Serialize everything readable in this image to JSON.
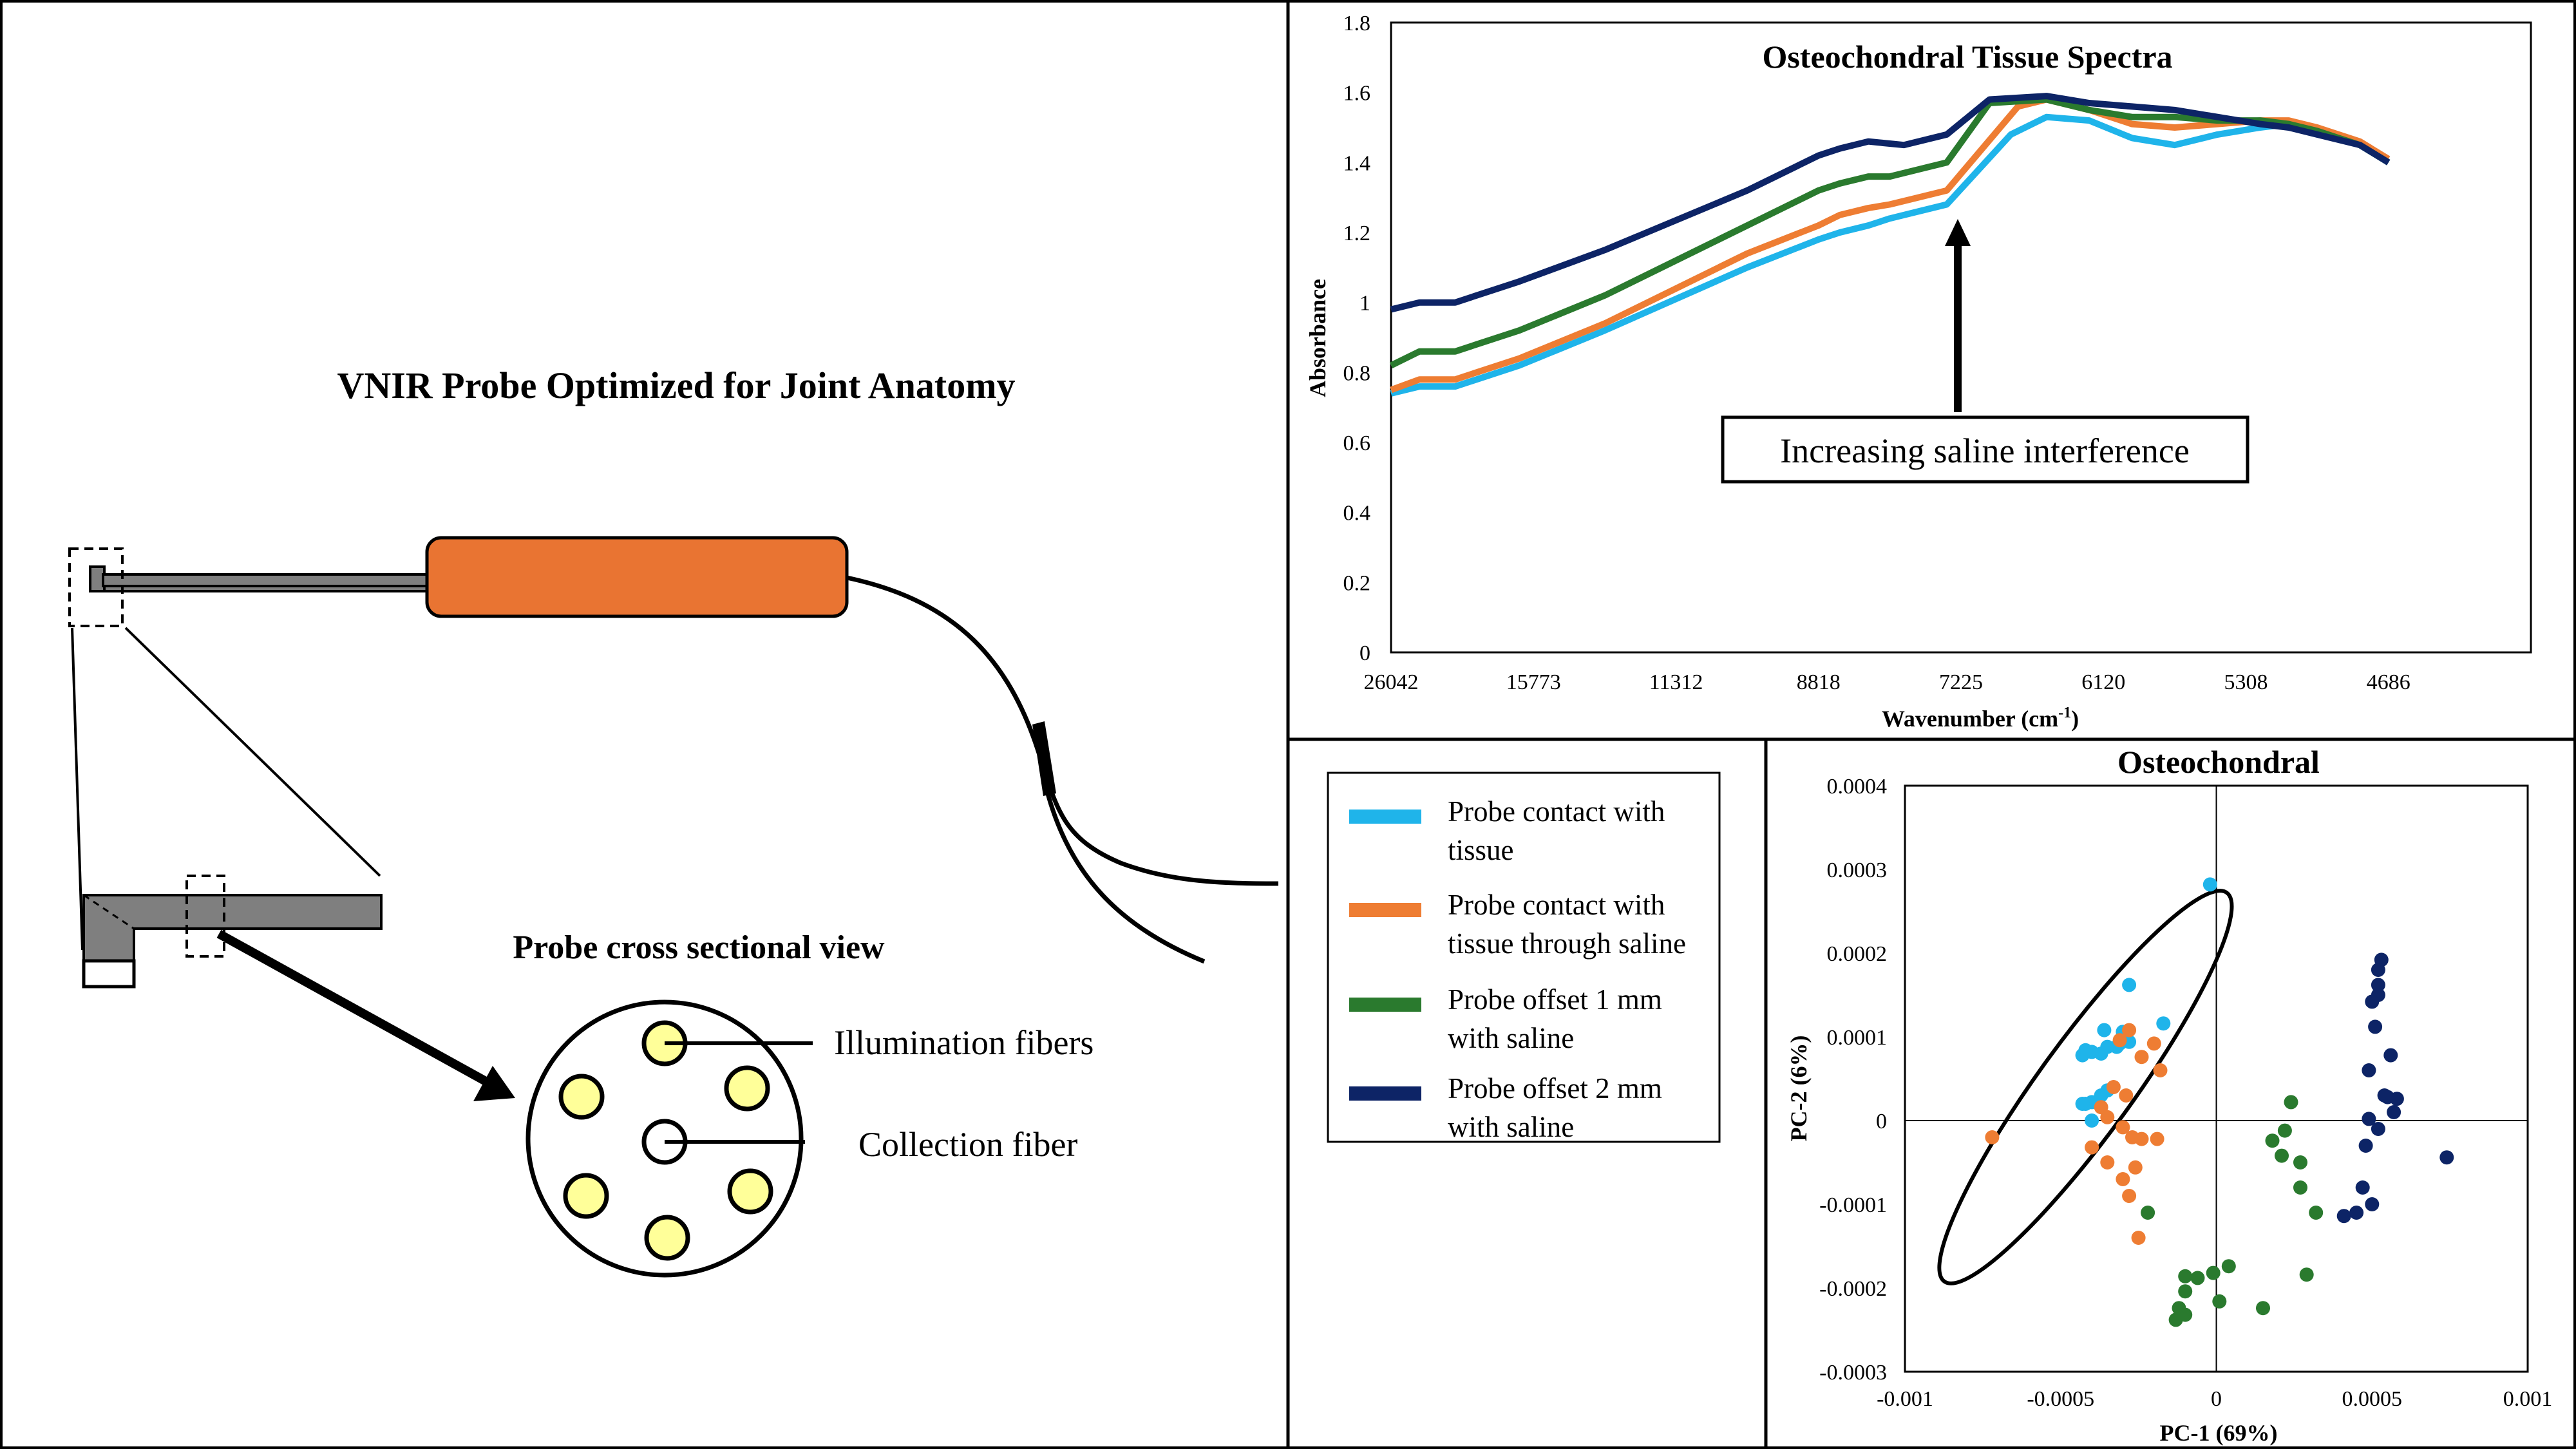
{
  "colors": {
    "series_probe_contact": "#1fb4ea",
    "series_through_saline": "#ee7d33",
    "series_offset_1mm": "#2a7a2e",
    "series_offset_2mm": "#0d2466",
    "probe_handle": "#e97432",
    "probe_shaft": "#7f7f7f",
    "fiber": "#ffff99"
  },
  "probe_panel": {
    "title": "VNIR Probe Optimized for Joint Anatomy",
    "cross_section_title": "Probe cross sectional view",
    "illumination_label": "Illumination fibers",
    "collection_label": "Collection fiber"
  },
  "chart_data": [
    {
      "type": "line",
      "title": "Osteochondral Tissue Spectra",
      "xlabel": "Wavenumber (cm",
      "xlabel_sup": "-1",
      "xlabel_close": ")",
      "ylabel": "Absorbance",
      "x_categories": [
        "26042",
        "15773",
        "11312",
        "8818",
        "7225",
        "6120",
        "5308",
        "4686"
      ],
      "y_ticks": [
        "0",
        "0.2",
        "0.4",
        "0.6",
        "0.8",
        "1",
        "1.2",
        "1.4",
        "1.6",
        "1.8"
      ],
      "ylim": [
        0,
        1.8
      ],
      "annotation": "Increasing saline interference",
      "series": [
        {
          "name": "Probe contact with tissue",
          "color_key": "series_probe_contact",
          "x": [
            0,
            0.2,
            0.45,
            0.9,
            1.5,
            2.5,
            3.0,
            3.15,
            3.35,
            3.5,
            3.7,
            3.9,
            4.35,
            4.6,
            4.9,
            5.2,
            5.5,
            5.8,
            6.1,
            6.3,
            6.5,
            6.8,
            7.0
          ],
          "y": [
            0.74,
            0.76,
            0.76,
            0.82,
            0.92,
            1.1,
            1.18,
            1.2,
            1.22,
            1.24,
            1.26,
            1.28,
            1.48,
            1.53,
            1.52,
            1.47,
            1.45,
            1.48,
            1.5,
            1.51,
            1.49,
            1.45,
            1.4
          ]
        },
        {
          "name": "Probe contact with tissue through saline",
          "color_key": "series_through_saline",
          "x": [
            0,
            0.2,
            0.45,
            0.9,
            1.5,
            2.5,
            3.0,
            3.15,
            3.35,
            3.5,
            3.7,
            3.9,
            4.4,
            4.6,
            4.9,
            5.2,
            5.5,
            5.8,
            6.1,
            6.3,
            6.5,
            6.8,
            7.0
          ],
          "y": [
            0.75,
            0.78,
            0.78,
            0.84,
            0.94,
            1.14,
            1.22,
            1.25,
            1.27,
            1.28,
            1.3,
            1.32,
            1.56,
            1.58,
            1.55,
            1.51,
            1.5,
            1.51,
            1.52,
            1.52,
            1.5,
            1.46,
            1.41
          ]
        },
        {
          "name": "Probe offset 1 mm with saline",
          "color_key": "series_offset_1mm",
          "x": [
            0,
            0.2,
            0.45,
            0.9,
            1.5,
            2.5,
            3.0,
            3.15,
            3.35,
            3.5,
            3.7,
            3.9,
            4.2,
            4.6,
            4.9,
            5.2,
            5.5,
            5.8,
            6.1,
            6.3,
            6.5,
            6.8,
            7.0
          ],
          "y": [
            0.82,
            0.86,
            0.86,
            0.92,
            1.02,
            1.22,
            1.32,
            1.34,
            1.36,
            1.36,
            1.38,
            1.4,
            1.57,
            1.58,
            1.55,
            1.53,
            1.53,
            1.52,
            1.52,
            1.51,
            1.49,
            1.45,
            1.4
          ]
        },
        {
          "name": "Probe offset 2 mm with saline",
          "color_key": "series_offset_2mm",
          "x": [
            0,
            0.2,
            0.45,
            0.9,
            1.5,
            2.5,
            3.0,
            3.15,
            3.35,
            3.6,
            3.9,
            4.2,
            4.6,
            4.9,
            5.2,
            5.5,
            5.8,
            6.1,
            6.3,
            6.5,
            6.8,
            7.0
          ],
          "y": [
            0.98,
            1.0,
            1.0,
            1.06,
            1.15,
            1.32,
            1.42,
            1.44,
            1.46,
            1.45,
            1.48,
            1.58,
            1.59,
            1.57,
            1.56,
            1.55,
            1.53,
            1.51,
            1.5,
            1.48,
            1.45,
            1.4
          ]
        }
      ]
    },
    {
      "type": "scatter",
      "title": "Osteochondral",
      "xlabel": "PC-1 (69%)",
      "ylabel": "PC-2 (6%)",
      "x_ticks": [
        "-0.001",
        "-0.0005",
        "0",
        "0.0005",
        "0.001"
      ],
      "x_tick_values": [
        -0.001,
        -0.0005,
        0,
        0.0005,
        0.001
      ],
      "y_ticks": [
        "-0.0003",
        "-0.0002",
        "-0.0001",
        "0",
        "0.0001",
        "0.0002",
        "0.0003",
        "0.0004"
      ],
      "y_tick_values": [
        -0.0003,
        -0.0002,
        -0.0001,
        0,
        0.0001,
        0.0002,
        0.0003,
        0.0004
      ],
      "xlim": [
        -0.001,
        0.001
      ],
      "ylim": [
        -0.0003,
        0.0004
      ],
      "ellipse": {
        "cx": -0.00042,
        "cy": 4e-05,
        "rx": 0.00032,
        "ry": 0.00014,
        "rotation_deg": -54
      },
      "legend": [
        {
          "line1": "Probe contact with",
          "line2": "tissue",
          "color_key": "series_probe_contact"
        },
        {
          "line1": "Probe contact with",
          "line2": "tissue through saline",
          "color_key": "series_through_saline"
        },
        {
          "line1": "Probe offset 1 mm",
          "line2": "with saline",
          "color_key": "series_offset_1mm"
        },
        {
          "line1": "Probe offset 2 mm",
          "line2": "with saline",
          "color_key": "series_offset_2mm"
        }
      ],
      "series": [
        {
          "name": "Probe contact with tissue",
          "color_key": "series_probe_contact",
          "points": [
            [
              -2e-05,
              0.000282
            ],
            [
              -0.00017,
              0.000116
            ],
            [
              -0.00028,
              0.000162
            ],
            [
              -0.00036,
              0.000108
            ],
            [
              -0.0003,
              0.000106
            ],
            [
              -0.00028,
              9.4e-05
            ],
            [
              -0.00031,
              9.2e-05
            ],
            [
              -0.00032,
              8.8e-05
            ],
            [
              -0.00035,
              8.8e-05
            ],
            [
              -0.00037,
              8e-05
            ],
            [
              -0.0004,
              8.2e-05
            ],
            [
              -0.00042,
              8.4e-05
            ],
            [
              -0.00043,
              7.8e-05
            ],
            [
              -0.0004,
              2.2e-05
            ],
            [
              -0.00037,
              3e-05
            ],
            [
              -0.00035,
              3.6e-05
            ],
            [
              -0.00042,
              2e-05
            ],
            [
              -0.00043,
              2e-05
            ],
            [
              -0.0004,
              0.0
            ]
          ]
        },
        {
          "name": "Probe contact with tissue through saline",
          "color_key": "series_through_saline",
          "points": [
            [
              -0.00072,
              -2e-05
            ],
            [
              -0.0004,
              -3.2e-05
            ],
            [
              -0.00028,
              0.000108
            ],
            [
              -0.00031,
              9.6e-05
            ],
            [
              -0.0002,
              9.2e-05
            ],
            [
              -0.00024,
              7.6e-05
            ],
            [
              -0.00018,
              6e-05
            ],
            [
              -0.00033,
              4e-05
            ],
            [
              -0.00029,
              3e-05
            ],
            [
              -0.00037,
              1.6e-05
            ],
            [
              -0.00035,
              4e-06
            ],
            [
              -0.0003,
              -8e-06
            ],
            [
              -0.00027,
              -2e-05
            ],
            [
              -0.00035,
              -5e-05
            ],
            [
              -0.00019,
              -2.2e-05
            ],
            [
              -0.00024,
              -2.2e-05
            ],
            [
              -0.00026,
              -5.6e-05
            ],
            [
              -0.0003,
              -7e-05
            ],
            [
              -0.00028,
              -9e-05
            ],
            [
              -0.00025,
              -0.00014
            ]
          ]
        },
        {
          "name": "Probe offset 1 mm with saline",
          "color_key": "series_offset_1mm",
          "points": [
            [
              -0.00022,
              -0.00011
            ],
            [
              0.00024,
              2.2e-05
            ],
            [
              0.00022,
              -1.2e-05
            ],
            [
              0.00018,
              -2.4e-05
            ],
            [
              0.00021,
              -4.2e-05
            ],
            [
              0.00027,
              -5e-05
            ],
            [
              0.00027,
              -8e-05
            ],
            [
              0.00032,
              -0.00011
            ],
            [
              4e-05,
              -0.000174
            ],
            [
              -1e-05,
              -0.000182
            ],
            [
              -0.0001,
              -0.000186
            ],
            [
              -6e-05,
              -0.000188
            ],
            [
              -0.0001,
              -0.000204
            ],
            [
              -0.00012,
              -0.000224
            ],
            [
              -0.0001,
              -0.000232
            ],
            [
              -0.00013,
              -0.000238
            ],
            [
              1e-05,
              -0.000216
            ],
            [
              0.00015,
              -0.000224
            ],
            [
              0.00029,
              -0.000184
            ]
          ]
        },
        {
          "name": "Probe offset 2 mm with saline",
          "color_key": "series_offset_2mm",
          "points": [
            [
              0.00053,
              0.000192
            ],
            [
              0.00052,
              0.00018
            ],
            [
              0.00052,
              0.000162
            ],
            [
              0.00052,
              0.00015
            ],
            [
              0.0005,
              0.000142
            ],
            [
              0.00051,
              0.000112
            ],
            [
              0.00056,
              7.8e-05
            ],
            [
              0.00049,
              6e-05
            ],
            [
              0.00055,
              2.8e-05
            ],
            [
              0.00058,
              2.6e-05
            ],
            [
              0.00054,
              3e-05
            ],
            [
              0.00049,
              2e-06
            ],
            [
              0.00057,
              1e-05
            ],
            [
              0.00052,
              -1e-05
            ],
            [
              0.00048,
              -3e-05
            ],
            [
              0.00074,
              -4.4e-05
            ],
            [
              0.00047,
              -8e-05
            ],
            [
              0.0005,
              -0.0001
            ],
            [
              0.00045,
              -0.00011
            ],
            [
              0.00041,
              -0.000114
            ]
          ]
        }
      ]
    }
  ]
}
